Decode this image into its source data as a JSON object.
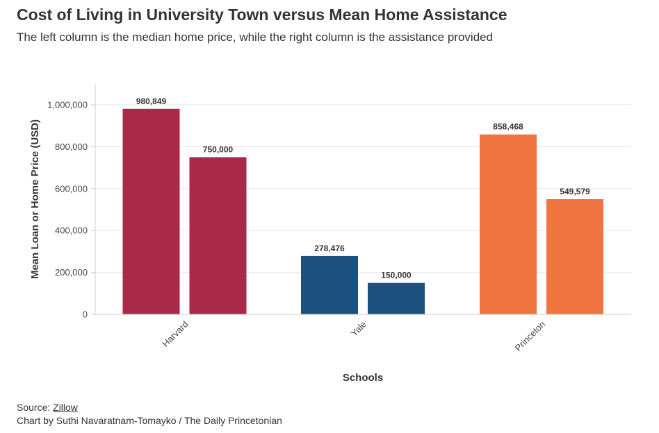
{
  "chart_data": {
    "type": "bar",
    "title": "Cost of Living in University Town versus Mean Home Assistance",
    "subtitle": "The left column is the median home price, while the right column is the assistance provided",
    "categories": [
      "Harvard",
      "Yale",
      "Princeton"
    ],
    "series": [
      {
        "name": "Median home price",
        "values": [
          980849,
          278476,
          858468
        ]
      },
      {
        "name": "Mean home assistance",
        "values": [
          750000,
          150000,
          549579
        ]
      }
    ],
    "value_labels": [
      [
        "980,849",
        "750,000"
      ],
      [
        "278,476",
        "150,000"
      ],
      [
        "858,468",
        "549,579"
      ]
    ],
    "category_colors": [
      "#a51c3e",
      "#0f4778",
      "#ef6e37"
    ],
    "xlabel": "Schools",
    "ylabel": "Mean Loan or Home Price (USD)",
    "ylim": [
      0,
      1100000
    ],
    "yticks": [
      0,
      200000,
      400000,
      600000,
      800000,
      1000000
    ],
    "ytick_labels": [
      "0",
      "200,000",
      "400,000",
      "600,000",
      "800,000",
      "1,000,000"
    ],
    "grid": true
  },
  "footer": {
    "source_prefix": "Source: ",
    "source_link": "Zillow",
    "credit": "Chart by Suthi Navaratnam-Tomayko / The Daily Princetonian"
  }
}
